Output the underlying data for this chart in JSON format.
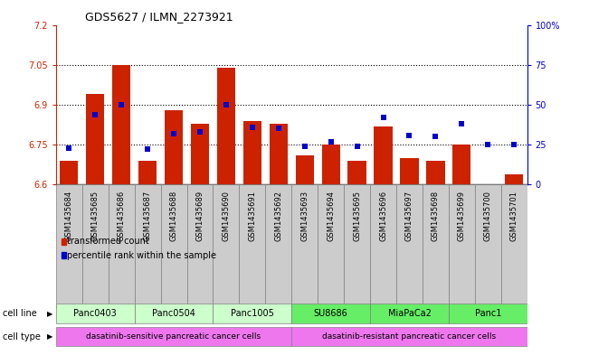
{
  "title": "GDS5627 / ILMN_2273921",
  "samples": [
    "GSM1435684",
    "GSM1435685",
    "GSM1435686",
    "GSM1435687",
    "GSM1435688",
    "GSM1435689",
    "GSM1435690",
    "GSM1435691",
    "GSM1435692",
    "GSM1435693",
    "GSM1435694",
    "GSM1435695",
    "GSM1435696",
    "GSM1435697",
    "GSM1435698",
    "GSM1435699",
    "GSM1435700",
    "GSM1435701"
  ],
  "bar_values": [
    6.69,
    6.94,
    7.05,
    6.69,
    6.88,
    6.83,
    7.04,
    6.84,
    6.83,
    6.71,
    6.75,
    6.69,
    6.82,
    6.7,
    6.69,
    6.75,
    6.6,
    6.64
  ],
  "percentile_values": [
    23,
    44,
    50,
    22,
    32,
    33,
    50,
    36,
    35,
    24,
    27,
    24,
    42,
    31,
    30,
    38,
    25,
    25
  ],
  "bar_color": "#cc2200",
  "percentile_color": "#0000cc",
  "ylim": [
    6.6,
    7.2
  ],
  "yticks": [
    6.6,
    6.75,
    6.9,
    7.05,
    7.2
  ],
  "ytick_labels": [
    "6.6",
    "6.75",
    "6.9",
    "7.05",
    "7.2"
  ],
  "hlines": [
    6.75,
    6.9,
    7.05
  ],
  "percentile_ylim": [
    0,
    100
  ],
  "percentile_yticks": [
    0,
    25,
    50,
    75,
    100
  ],
  "percentile_ytick_labels": [
    "0",
    "25",
    "50",
    "75",
    "100%"
  ],
  "cell_lines": [
    {
      "name": "Panc0403",
      "start": 0,
      "end": 3,
      "color": "#ccffcc"
    },
    {
      "name": "Panc0504",
      "start": 3,
      "end": 6,
      "color": "#ccffcc"
    },
    {
      "name": "Panc1005",
      "start": 6,
      "end": 9,
      "color": "#ccffcc"
    },
    {
      "name": "SU8686",
      "start": 9,
      "end": 12,
      "color": "#66ee66"
    },
    {
      "name": "MiaPaCa2",
      "start": 12,
      "end": 15,
      "color": "#66ee66"
    },
    {
      "name": "Panc1",
      "start": 15,
      "end": 18,
      "color": "#66ee66"
    }
  ],
  "cell_types": [
    {
      "name": "dasatinib-sensitive pancreatic cancer cells",
      "start": 0,
      "end": 9,
      "color": "#ee77ee"
    },
    {
      "name": "dasatinib-resistant pancreatic cancer cells",
      "start": 9,
      "end": 18,
      "color": "#ee77ee"
    }
  ],
  "legend_bar_label": "transformed count",
  "legend_pct_label": "percentile rank within the sample",
  "cell_line_label": "cell line",
  "cell_type_label": "cell type",
  "sample_box_color": "#cccccc",
  "title_fontsize": 9,
  "tick_fontsize": 7,
  "sample_fontsize": 6,
  "row_label_fontsize": 7,
  "cell_line_fontsize": 7,
  "cell_type_fontsize": 6.5,
  "legend_fontsize": 7
}
